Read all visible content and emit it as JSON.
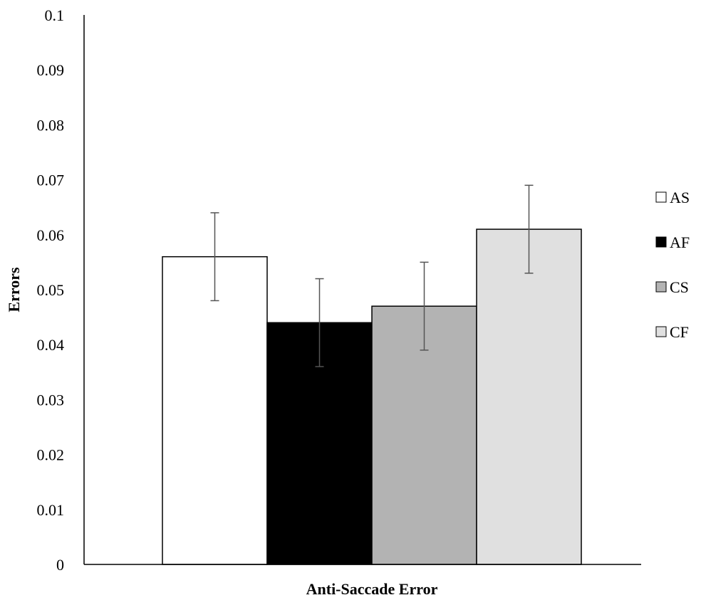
{
  "chart_data": {
    "type": "bar",
    "title": "",
    "xlabel": "Anti-Saccade Error",
    "ylabel": "Errors",
    "ylim": [
      0,
      0.1
    ],
    "yticks": [
      "0",
      "0.01",
      "0.02",
      "0.03",
      "0.04",
      "0.05",
      "0.06",
      "0.07",
      "0.08",
      "0.09",
      "0.1"
    ],
    "grid": false,
    "legend_position": "right",
    "categories": [
      "Anti-Saccade Error"
    ],
    "series": [
      {
        "name": "AS",
        "values": [
          0.056
        ],
        "error": [
          0.008
        ],
        "color": "#ffffff"
      },
      {
        "name": "AF",
        "values": [
          0.044
        ],
        "error": [
          0.008
        ],
        "color": "#000000"
      },
      {
        "name": "CS",
        "values": [
          0.047
        ],
        "error": [
          0.008
        ],
        "color": "#b3b3b3"
      },
      {
        "name": "CF",
        "values": [
          0.061
        ],
        "error": [
          0.008
        ],
        "color": "#e0e0e0"
      }
    ]
  }
}
